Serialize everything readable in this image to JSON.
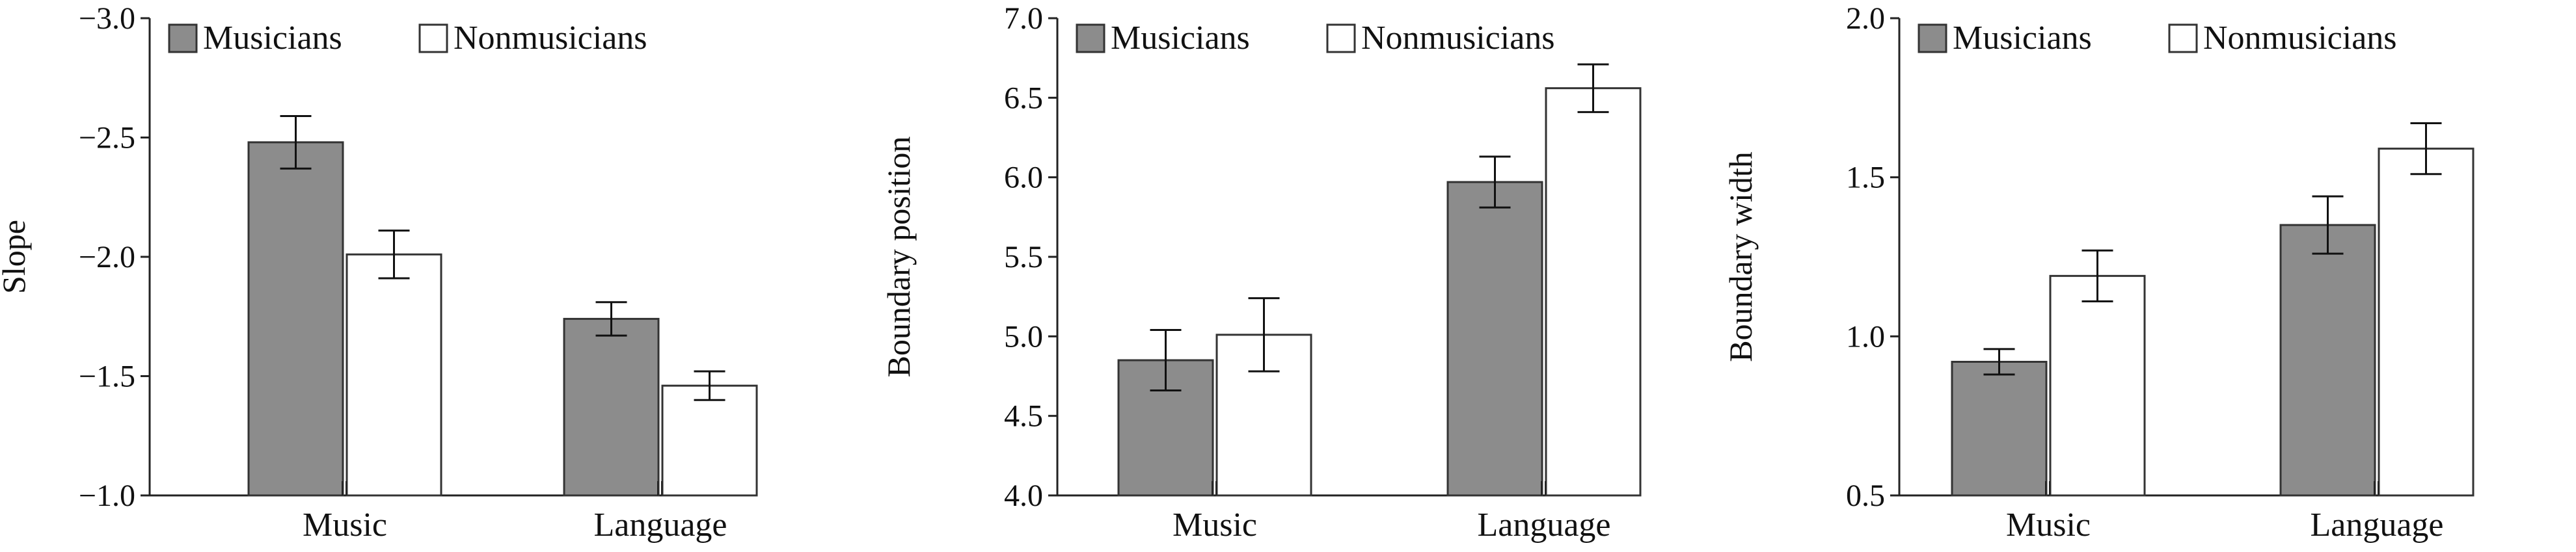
{
  "colors": {
    "musicians": "#8c8c8c",
    "nonmusicians": "#ffffff",
    "stroke": "#333333",
    "axis": "#222222"
  },
  "chart_data": [
    {
      "type": "bar",
      "title": "",
      "xlabel": "",
      "ylabel": "Slope",
      "categories": [
        "Music",
        "Language"
      ],
      "ylim": [
        -1.0,
        -3.0
      ],
      "yticks": [
        -1.0,
        -1.5,
        -2.0,
        -2.5,
        -3.0
      ],
      "ytick_labels": [
        "−1.0",
        "−1.5",
        "−2.0",
        "−2.5",
        "−3.0"
      ],
      "legend": "top-left",
      "grid": false,
      "series": [
        {
          "name": "Musicians",
          "values": [
            -2.48,
            -1.74
          ],
          "errors": [
            0.11,
            0.07
          ],
          "color": "#8c8c8c"
        },
        {
          "name": "Nonmusicians",
          "values": [
            -2.01,
            -1.46
          ],
          "errors": [
            0.1,
            0.06
          ],
          "color": "#ffffff"
        }
      ]
    },
    {
      "type": "bar",
      "title": "",
      "xlabel": "",
      "ylabel": "Boundary position",
      "categories": [
        "Music",
        "Language"
      ],
      "ylim": [
        4.0,
        7.0
      ],
      "yticks": [
        4.0,
        4.5,
        5.0,
        5.5,
        6.0,
        6.5,
        7.0
      ],
      "ytick_labels": [
        "4.0",
        "4.5",
        "5.0",
        "5.5",
        "6.0",
        "6.5",
        "7.0"
      ],
      "legend": "top-left",
      "grid": false,
      "series": [
        {
          "name": "Musicians",
          "values": [
            4.85,
            5.97
          ],
          "errors": [
            0.19,
            0.16
          ],
          "color": "#8c8c8c"
        },
        {
          "name": "Nonmusicians",
          "values": [
            5.01,
            6.56
          ],
          "errors": [
            0.23,
            0.15
          ],
          "color": "#ffffff"
        }
      ]
    },
    {
      "type": "bar",
      "title": "",
      "xlabel": "",
      "ylabel": "Boundary width",
      "categories": [
        "Music",
        "Language"
      ],
      "ylim": [
        0.5,
        2.0
      ],
      "yticks": [
        0.5,
        1.0,
        1.5,
        2.0
      ],
      "ytick_labels": [
        "0.5",
        "1.0",
        "1.5",
        "2.0"
      ],
      "legend": "top-left",
      "grid": false,
      "series": [
        {
          "name": "Musicians",
          "values": [
            0.92,
            1.35
          ],
          "errors": [
            0.04,
            0.09
          ],
          "color": "#8c8c8c"
        },
        {
          "name": "Nonmusicians",
          "values": [
            1.19,
            1.59
          ],
          "errors": [
            0.08,
            0.08
          ],
          "color": "#ffffff"
        }
      ]
    }
  ]
}
